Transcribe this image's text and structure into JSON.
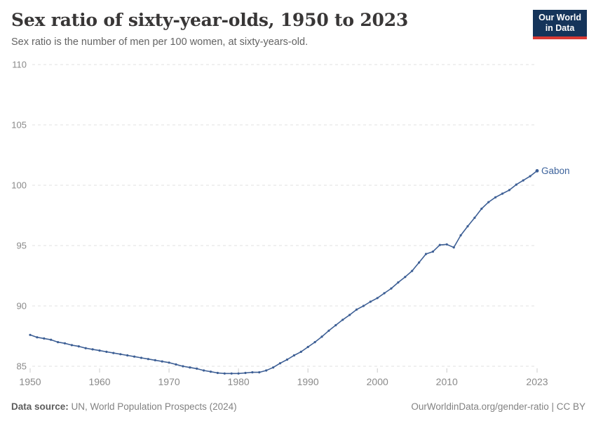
{
  "header": {
    "title": "Sex ratio of sixty-year-olds, 1950 to 2023",
    "subtitle": "Sex ratio is the number of men per 100 women, at sixty-years-old.",
    "logo_line1": "Our World",
    "logo_line2": "in Data"
  },
  "footer": {
    "source_label": "Data source:",
    "source_text": " UN, World Population Prospects (2024)",
    "credit": "OurWorldinData.org/gender-ratio | CC BY"
  },
  "colors": {
    "line": "#3d5f95",
    "series_label": "#3d639c",
    "gridline": "#e0e0e0",
    "tick_mark": "#cccccc",
    "tick_label": "#8a8a8a",
    "logo_bg": "#15345a",
    "logo_underline": "#d93a34"
  },
  "chart_data": {
    "type": "line",
    "title": "Sex ratio of sixty-year-olds, 1950 to 2023",
    "xlabel": "",
    "ylabel": "",
    "xlim": [
      1950,
      2023
    ],
    "ylim": [
      85,
      110
    ],
    "grid": "horizontal-dashed",
    "legend_position": "inline-end-label",
    "y_ticks": [
      85,
      90,
      95,
      100,
      105,
      110
    ],
    "x_ticks": [
      {
        "value": 1950,
        "label": "1950"
      },
      {
        "value": 1960,
        "label": "1960"
      },
      {
        "value": 1970,
        "label": "1970"
      },
      {
        "value": 1980,
        "label": "1980"
      },
      {
        "value": 1990,
        "label": "1990"
      },
      {
        "value": 2000,
        "label": "2000"
      },
      {
        "value": 2010,
        "label": "2010"
      },
      {
        "value": 2023,
        "label": "2023"
      }
    ],
    "x": [
      1950,
      1951,
      1952,
      1953,
      1954,
      1955,
      1956,
      1957,
      1958,
      1959,
      1960,
      1961,
      1962,
      1963,
      1964,
      1965,
      1966,
      1967,
      1968,
      1969,
      1970,
      1971,
      1972,
      1973,
      1974,
      1975,
      1976,
      1977,
      1978,
      1979,
      1980,
      1981,
      1982,
      1983,
      1984,
      1985,
      1986,
      1987,
      1988,
      1989,
      1990,
      1991,
      1992,
      1993,
      1994,
      1995,
      1996,
      1997,
      1998,
      1999,
      2000,
      2001,
      2002,
      2003,
      2004,
      2005,
      2006,
      2007,
      2008,
      2009,
      2010,
      2011,
      2012,
      2013,
      2014,
      2015,
      2016,
      2017,
      2018,
      2019,
      2020,
      2021,
      2022,
      2023
    ],
    "series": [
      {
        "name": "Gabon",
        "values": [
          87.6,
          87.4,
          87.3,
          87.2,
          87.0,
          86.9,
          86.75,
          86.65,
          86.5,
          86.4,
          86.3,
          86.2,
          86.1,
          86.0,
          85.9,
          85.8,
          85.7,
          85.6,
          85.5,
          85.4,
          85.3,
          85.15,
          85.0,
          84.9,
          84.8,
          84.65,
          84.55,
          84.45,
          84.4,
          84.4,
          84.4,
          84.45,
          84.5,
          84.5,
          84.65,
          84.9,
          85.25,
          85.55,
          85.9,
          86.2,
          86.6,
          87.0,
          87.45,
          87.95,
          88.4,
          88.85,
          89.25,
          89.7,
          90.0,
          90.35,
          90.65,
          91.05,
          91.45,
          91.95,
          92.4,
          92.9,
          93.6,
          94.3,
          94.5,
          95.05,
          95.1,
          94.85,
          95.85,
          96.6,
          97.3,
          98.05,
          98.6,
          99.0,
          99.3,
          99.6,
          100.05,
          100.4,
          100.75,
          101.2
        ]
      }
    ]
  }
}
